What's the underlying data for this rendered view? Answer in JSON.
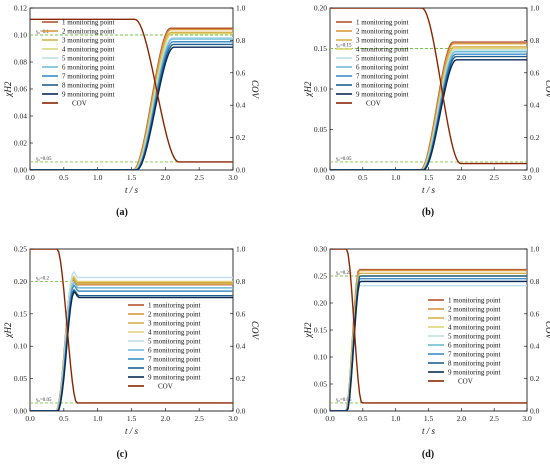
{
  "figure": {
    "colors": {
      "cov": "#8B2500",
      "guide": "#7CC34A",
      "series": [
        "#B5532D",
        "#D9973E",
        "#D6B24B",
        "#DCD57A",
        "#BFE0EA",
        "#6FBCD6",
        "#3D8FC6",
        "#1F5F8F",
        "#0A2A55"
      ]
    }
  },
  "chart_data": [
    {
      "type": "line",
      "panel_label": "(a)",
      "xlabel": "t / s",
      "ylabel": "χH2",
      "y2label": "COV",
      "xlim": [
        0,
        3.0
      ],
      "ylim": [
        0,
        0.12
      ],
      "y2lim": [
        0,
        1.0
      ],
      "xticks": [
        "0.0",
        "0.5",
        "1.0",
        "1.5",
        "2.0",
        "2.5",
        "3.0"
      ],
      "yticks": [
        "0.00",
        "0.02",
        "0.04",
        "0.06",
        "0.08",
        "0.10",
        "0.12"
      ],
      "y2ticks": [
        "0.0",
        "0.2",
        "0.4",
        "0.6",
        "0.8",
        "1.0"
      ],
      "legend": {
        "position": "top-left",
        "entries": [
          "1 monitoring point",
          "2 monitoring point",
          "3 monitoring point",
          "4 monitoring point",
          "5 monitoring point",
          "6 monitoring point",
          "7 monitoring point",
          "8 monitoring point",
          "9 monitoring point",
          "COV"
        ]
      },
      "guides": [
        {
          "label": "γ₀=0.1",
          "y": 0.1
        },
        {
          "label": "γ₀=0.05",
          "y2": 0.05
        }
      ],
      "t_start": 1.55,
      "t_end": 2.1,
      "series": [
        {
          "name": "1 monitoring point",
          "plateau": 0.105
        },
        {
          "name": "2 monitoring point",
          "plateau": 0.104
        },
        {
          "name": "3 monitoring point",
          "plateau": 0.102
        },
        {
          "name": "4 monitoring point",
          "plateau": 0.101
        },
        {
          "name": "5 monitoring point",
          "plateau": 0.098
        },
        {
          "name": "6 monitoring point",
          "plateau": 0.097
        },
        {
          "name": "7 monitoring point",
          "plateau": 0.095
        },
        {
          "name": "8 monitoring point",
          "plateau": 0.093
        },
        {
          "name": "9 monitoring point",
          "plateau": 0.091
        }
      ],
      "cov": {
        "name": "COV",
        "start": 0.93,
        "end": 0.05
      }
    },
    {
      "type": "line",
      "panel_label": "(b)",
      "xlabel": "t / s",
      "ylabel": "χH2",
      "y2label": "COV",
      "xlim": [
        0,
        3.0
      ],
      "ylim": [
        0,
        0.2
      ],
      "y2lim": [
        0,
        1.0
      ],
      "xticks": [
        "0.0",
        "0.5",
        "1.0",
        "1.5",
        "2.0",
        "2.5",
        "3.0"
      ],
      "yticks": [
        "0.00",
        "0.05",
        "0.10",
        "0.15",
        "0.20"
      ],
      "y2ticks": [
        "0.0",
        "0.2",
        "0.4",
        "0.6",
        "0.8",
        "1.0"
      ],
      "legend": {
        "position": "top-left",
        "entries": [
          "1 monitoring point",
          "2 monitoring point",
          "3 monitoring point",
          "4 monitoring point",
          "5 monitoring point",
          "6 monitoring point",
          "7 monitoring point",
          "8 monitoring point",
          "9 monitoring point",
          "COV"
        ]
      },
      "guides": [
        {
          "label": "γ₀=0.15",
          "y": 0.15
        },
        {
          "label": "γ₀=0.05",
          "y2": 0.05
        }
      ],
      "t_start": 1.4,
      "t_end": 1.9,
      "series": [
        {
          "name": "1 monitoring point",
          "plateau": 0.158
        },
        {
          "name": "2 monitoring point",
          "plateau": 0.156
        },
        {
          "name": "3 monitoring point",
          "plateau": 0.152
        },
        {
          "name": "4 monitoring point",
          "plateau": 0.15
        },
        {
          "name": "5 monitoring point",
          "plateau": 0.148
        },
        {
          "name": "6 monitoring point",
          "plateau": 0.146
        },
        {
          "name": "7 monitoring point",
          "plateau": 0.143
        },
        {
          "name": "8 monitoring point",
          "plateau": 0.14
        },
        {
          "name": "9 monitoring point",
          "plateau": 0.136
        }
      ],
      "cov": {
        "name": "COV",
        "start": 1.0,
        "end": 0.04
      }
    },
    {
      "type": "line",
      "panel_label": "(c)",
      "xlabel": "t / s",
      "ylabel": "χH2",
      "y2label": "COV",
      "xlim": [
        0,
        3.0
      ],
      "ylim": [
        0,
        0.25
      ],
      "y2lim": [
        0,
        1.0
      ],
      "xticks": [
        "0.0",
        "0.5",
        "1.0",
        "1.5",
        "2.0",
        "2.5",
        "3.0"
      ],
      "yticks": [
        "0.00",
        "0.05",
        "0.10",
        "0.15",
        "0.20",
        "0.25"
      ],
      "y2ticks": [
        "0.0",
        "0.2",
        "0.4",
        "0.6",
        "0.8",
        "1.0"
      ],
      "legend": {
        "position": "center-right",
        "entries": [
          "1 monitoring point",
          "2 monitoring point",
          "3 monitoring point",
          "4 monitoring point",
          "5 monitoring point",
          "6 monitoring point",
          "7 monitoring point",
          "8 monitoring point",
          "9 monitoring point",
          "COV"
        ]
      },
      "guides": [
        {
          "label": "γ₀=0.2",
          "y": 0.2
        },
        {
          "label": "γ₀=0.05",
          "y2": 0.05
        }
      ],
      "t_start": 0.4,
      "t_end": 0.65,
      "series": [
        {
          "name": "1 monitoring point",
          "plateau": 0.195
        },
        {
          "name": "2 monitoring point",
          "plateau": 0.198
        },
        {
          "name": "3 monitoring point",
          "plateau": 0.196
        },
        {
          "name": "4 monitoring point",
          "plateau": 0.2
        },
        {
          "name": "5 monitoring point",
          "plateau": 0.206
        },
        {
          "name": "6 monitoring point",
          "plateau": 0.19
        },
        {
          "name": "7 monitoring point",
          "plateau": 0.185
        },
        {
          "name": "8 monitoring point",
          "plateau": 0.178
        },
        {
          "name": "9 monitoring point",
          "plateau": 0.175
        }
      ],
      "cov": {
        "name": "COV",
        "start": 1.0,
        "end": 0.05
      }
    },
    {
      "type": "line",
      "panel_label": "(d)",
      "xlabel": "t / s",
      "ylabel": "χH2",
      "y2label": "COV",
      "xlim": [
        0,
        3.0
      ],
      "ylim": [
        0,
        0.3
      ],
      "y2lim": [
        0,
        1.0
      ],
      "xticks": [
        "0.0",
        "0.5",
        "1.0",
        "1.5",
        "2.0",
        "2.5",
        "3.0"
      ],
      "yticks": [
        "0.00",
        "0.05",
        "0.10",
        "0.15",
        "0.20",
        "0.25",
        "0.30"
      ],
      "y2ticks": [
        "0.0",
        "0.2",
        "0.4",
        "0.6",
        "0.8",
        "1.0"
      ],
      "legend": {
        "position": "center-right",
        "entries": [
          "1 monitoring point",
          "2 monitoring point",
          "3 monitoring point",
          "4 monitoring point",
          "5 monitoring point",
          "6 monitoring point",
          "7 monitoring point",
          "8 monitoring point",
          "9 monitoring point",
          "COV"
        ]
      },
      "guides": [
        {
          "label": "γ₀=0.25",
          "y": 0.25
        },
        {
          "label": "γ₀=0.05",
          "y2": 0.05
        }
      ],
      "t_start": 0.25,
      "t_end": 0.45,
      "series": [
        {
          "name": "1 monitoring point",
          "plateau": 0.262
        },
        {
          "name": "2 monitoring point",
          "plateau": 0.26
        },
        {
          "name": "3 monitoring point",
          "plateau": 0.255
        },
        {
          "name": "4 monitoring point",
          "plateau": 0.25
        },
        {
          "name": "5 monitoring point",
          "plateau": 0.232
        },
        {
          "name": "6 monitoring point",
          "plateau": 0.24
        },
        {
          "name": "7 monitoring point",
          "plateau": 0.245
        },
        {
          "name": "8 monitoring point",
          "plateau": 0.25
        },
        {
          "name": "9 monitoring point",
          "plateau": 0.24
        }
      ],
      "cov": {
        "name": "COV",
        "start": 1.0,
        "end": 0.05
      }
    }
  ]
}
